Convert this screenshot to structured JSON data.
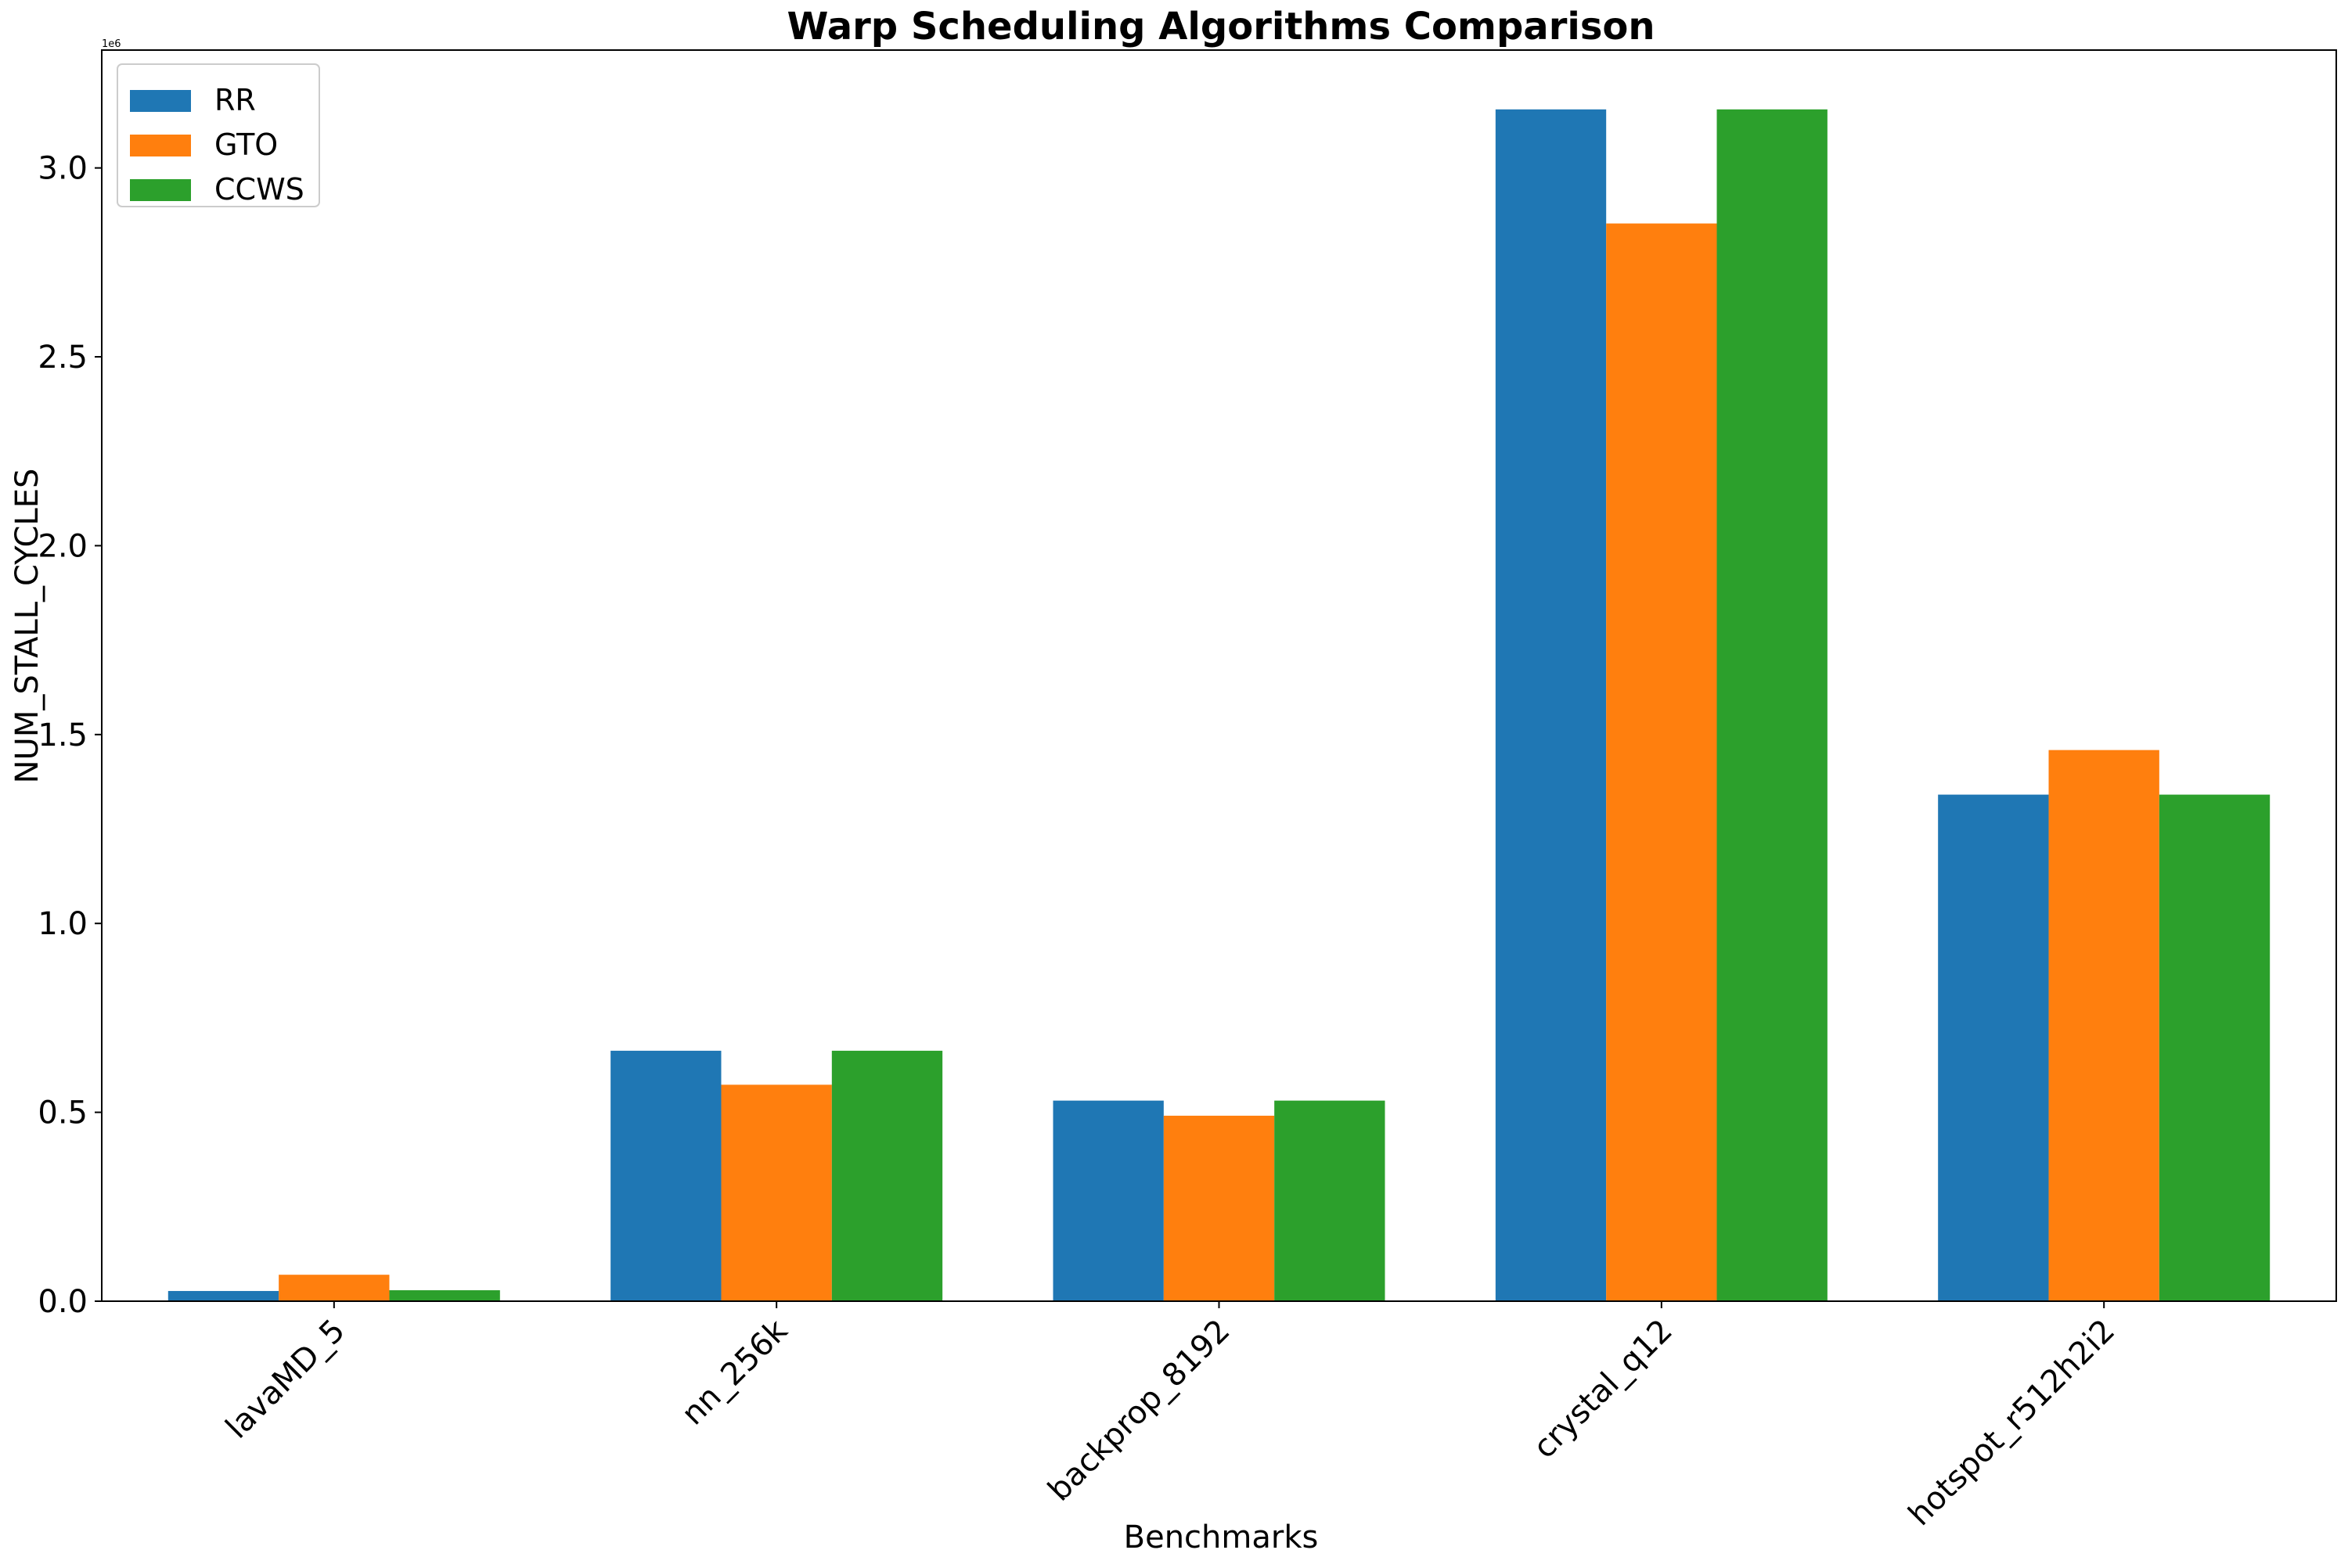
{
  "chart_data": {
    "type": "bar",
    "title": "Warp Scheduling Algorithms Comparison",
    "xlabel": "Benchmarks",
    "ylabel": "NUM_STALL_CYCLES",
    "y_offset_label": "1e6",
    "categories": [
      "lavaMD_5",
      "nn_256k",
      "backprop_8192",
      "crystal_q12",
      "hotspot_r512h2i2"
    ],
    "series": [
      {
        "name": "RR",
        "color": "#1f77b4",
        "values": [
          27000,
          663000,
          531000,
          3155000,
          1341000
        ]
      },
      {
        "name": "GTO",
        "color": "#ff7f0e",
        "values": [
          70000,
          573000,
          491000,
          2853000,
          1459000
        ]
      },
      {
        "name": "CCWS",
        "color": "#2ca02c",
        "values": [
          29000,
          663000,
          531000,
          3155000,
          1341000
        ]
      }
    ],
    "ylim": [
      0,
      3312000
    ],
    "yticks": [
      0,
      500000,
      1000000,
      1500000,
      2000000,
      2500000,
      3000000
    ],
    "ytick_labels": [
      "0.0",
      "0.5",
      "1.0",
      "1.5",
      "2.0",
      "2.5",
      "3.0"
    ],
    "legend_position": "top-left",
    "grid": false
  }
}
